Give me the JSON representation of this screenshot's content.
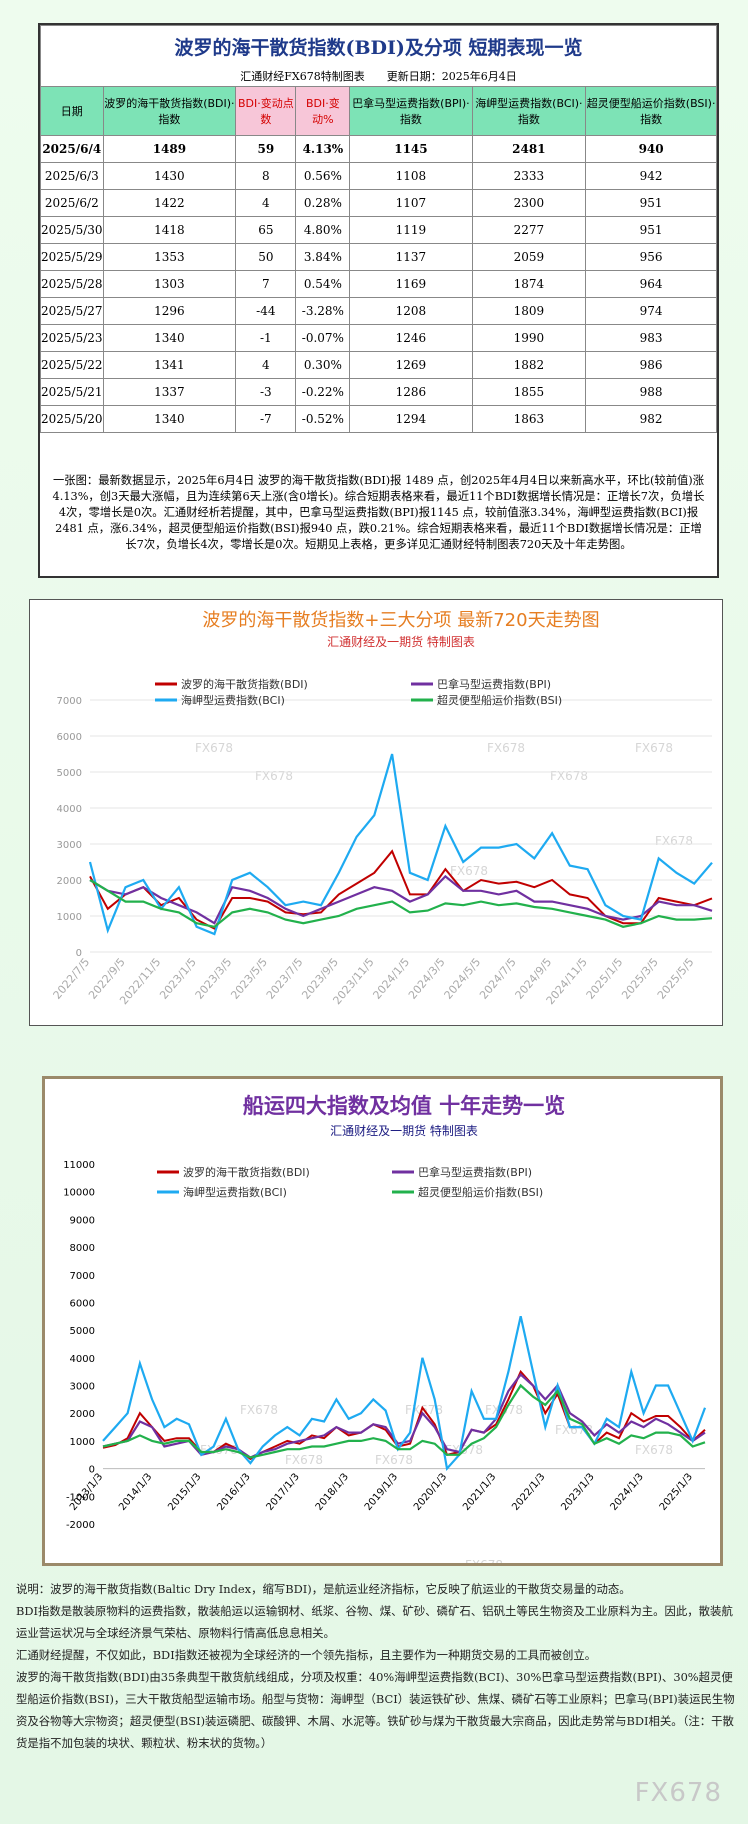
{
  "header": {
    "title": "波罗的海干散货指数(BDI)及分项 短期表现一览",
    "subtitle": "汇通财经FX678特制图表　　更新日期：2025年6月4日"
  },
  "table": {
    "columns": [
      "日期",
      "波罗的海干散货指数(BDI)·指数",
      "BDI·变动点数",
      "BDI·变动%",
      "巴拿马型运费指数(BPI)·指数",
      "海岬型运费指数(BCI)·指数",
      "超灵便型船运价指数(BSI)·指数"
    ],
    "rows": [
      [
        "2025/6/4",
        "1489",
        "59",
        "4.13%",
        "1145",
        "2481",
        "940"
      ],
      [
        "2025/6/3",
        "1430",
        "8",
        "0.56%",
        "1108",
        "2333",
        "942"
      ],
      [
        "2025/6/2",
        "1422",
        "4",
        "0.28%",
        "1107",
        "2300",
        "951"
      ],
      [
        "2025/5/30",
        "1418",
        "65",
        "4.80%",
        "1119",
        "2277",
        "951"
      ],
      [
        "2025/5/29",
        "1353",
        "50",
        "3.84%",
        "1137",
        "2059",
        "956"
      ],
      [
        "2025/5/28",
        "1303",
        "7",
        "0.54%",
        "1169",
        "1874",
        "964"
      ],
      [
        "2025/5/27",
        "1296",
        "-44",
        "-3.28%",
        "1208",
        "1809",
        "974"
      ],
      [
        "2025/5/23",
        "1340",
        "-1",
        "-0.07%",
        "1246",
        "1990",
        "983"
      ],
      [
        "2025/5/22",
        "1341",
        "4",
        "0.30%",
        "1269",
        "1882",
        "986"
      ],
      [
        "2025/5/21",
        "1337",
        "-3",
        "-0.22%",
        "1286",
        "1855",
        "988"
      ],
      [
        "2025/5/20",
        "1340",
        "-7",
        "-0.52%",
        "1294",
        "1863",
        "982"
      ]
    ]
  },
  "summary": "一张图：最新数据显示，2025年6月4日 波罗的海干散货指数(BDI)报 1489 点，创2025年4月4日以来新高水平，环比(较前值)涨4.13%，创3天最大涨幅，且为连续第6天上涨(含0增长)。综合短期表格来看，最近11个BDI数据增长情况是：正增长7次，负增长4次，零增长是0次。汇通财经析若提醒，其中，巴拿马型运费指数(BPI)报1145 点，较前值涨3.34%，海岬型运费指数(BCI)报2481 点，涨6.34%，超灵便型船运价指数(BSI)报940 点，跌0.21%。综合短期表格来看，最近11个BDI数据增长情况是：正增长7次，负增长4次，零增长是0次。短期见上表格，更多详见汇通财经特制图表720天及十年走势图。",
  "watermark": "FX678",
  "chart_data": [
    {
      "type": "line",
      "title": "波罗的海干散货指数+三大分项  最新720天走势图",
      "subtitle": "汇通财经及一期货  特制图表",
      "grid": true,
      "categories": [
        "2022/7/5",
        null,
        "2022/9/5",
        null,
        "2022/11/5",
        null,
        "2023/1/5",
        null,
        "2023/3/5",
        null,
        "2023/5/5",
        null,
        "2023/7/5",
        null,
        "2023/9/5",
        null,
        "2023/11/5",
        null,
        "2024/1/5",
        null,
        "2024/3/5",
        null,
        "2024/5/5",
        null,
        "2024/7/5",
        null,
        "2024/9/5",
        null,
        "2024/11/5",
        null,
        "2025/1/5",
        null,
        "2025/3/5",
        null,
        "2025/5/5",
        null
      ],
      "ylim": [
        0,
        7000
      ],
      "yticks": [
        0,
        1000,
        2000,
        3000,
        4000,
        5000,
        6000,
        7000
      ],
      "series": [
        {
          "name": "波罗的海干散货指数(BDI)",
          "color": "#c00000",
          "values": [
            2100,
            1200,
            1600,
            1800,
            1300,
            1500,
            900,
            650,
            1500,
            1500,
            1400,
            1100,
            1050,
            1100,
            1600,
            1900,
            2200,
            2800,
            1600,
            1600,
            2300,
            1700,
            2000,
            1900,
            1950,
            1800,
            2000,
            1600,
            1500,
            1000,
            800,
            800,
            1500,
            1400,
            1300,
            1489
          ]
        },
        {
          "name": "巴拿马型运费指数(BPI)",
          "color": "#7030a0",
          "values": [
            2000,
            1700,
            1600,
            1800,
            1500,
            1300,
            1100,
            800,
            1800,
            1700,
            1500,
            1200,
            1000,
            1200,
            1400,
            1600,
            1800,
            1700,
            1400,
            1600,
            2100,
            1700,
            1700,
            1600,
            1700,
            1400,
            1400,
            1300,
            1200,
            1000,
            900,
            1000,
            1400,
            1300,
            1300,
            1145
          ]
        },
        {
          "name": "海岬型运费指数(BCI)",
          "color": "#1eaaf1",
          "values": [
            2500,
            600,
            1800,
            2000,
            1200,
            1800,
            700,
            500,
            2000,
            2200,
            1800,
            1300,
            1400,
            1300,
            2200,
            3200,
            3800,
            5500,
            2200,
            2000,
            3500,
            2500,
            2900,
            2900,
            3000,
            2600,
            3300,
            2400,
            2300,
            1300,
            1000,
            900,
            2600,
            2200,
            1900,
            2481
          ]
        },
        {
          "name": "超灵便型船运价指数(BSI)",
          "color": "#22b14c",
          "values": [
            2000,
            1700,
            1400,
            1400,
            1200,
            1100,
            800,
            700,
            1100,
            1200,
            1100,
            900,
            800,
            900,
            1000,
            1200,
            1300,
            1400,
            1100,
            1150,
            1350,
            1300,
            1400,
            1300,
            1350,
            1250,
            1200,
            1100,
            1000,
            900,
            700,
            800,
            1000,
            900,
            900,
            940
          ]
        }
      ]
    },
    {
      "type": "line",
      "title": "船运四大指数及均值 十年走势一览",
      "subtitle": "汇通财经及一期货 特制图表",
      "grid": false,
      "categories": [
        "2013/1/3",
        null,
        null,
        null,
        "2014/1/3",
        null,
        null,
        null,
        "2015/1/3",
        null,
        null,
        null,
        "2016/1/3",
        null,
        null,
        null,
        "2017/1/3",
        null,
        null,
        null,
        "2018/1/3",
        null,
        null,
        null,
        "2019/1/3",
        null,
        null,
        null,
        "2020/1/3",
        null,
        null,
        null,
        "2021/1/3",
        null,
        null,
        null,
        "2022/1/3",
        null,
        null,
        null,
        "2023/1/3",
        null,
        null,
        null,
        "2024/1/3",
        null,
        null,
        null,
        "2025/1/3",
        null
      ],
      "ylim": [
        -2000,
        11000
      ],
      "yticks": [
        -2000,
        -1000,
        0,
        1000,
        2000,
        3000,
        4000,
        5000,
        6000,
        7000,
        8000,
        9000,
        10000,
        11000
      ],
      "series": [
        {
          "name": "波罗的海干散货指数(BDI)",
          "color": "#c00000",
          "values": [
            750,
            850,
            1100,
            2000,
            1500,
            1000,
            1100,
            1100,
            600,
            600,
            900,
            700,
            350,
            600,
            800,
            1000,
            900,
            1200,
            1100,
            1500,
            1200,
            1300,
            1600,
            1400,
            800,
            900,
            2200,
            1600,
            500,
            600,
            1400,
            1300,
            1600,
            2500,
            3500,
            3000,
            2000,
            2700,
            1500,
            1500,
            900,
            1300,
            1100,
            2000,
            1700,
            1900,
            1900,
            1500,
            1000,
            1400
          ]
        },
        {
          "name": "巴拿马型运费指数(BPI)",
          "color": "#7030a0",
          "values": [
            800,
            900,
            1000,
            1700,
            1500,
            800,
            900,
            1000,
            500,
            600,
            800,
            700,
            400,
            600,
            700,
            900,
            1000,
            1100,
            1200,
            1500,
            1300,
            1300,
            1600,
            1500,
            900,
            1000,
            2000,
            1500,
            700,
            600,
            1400,
            1300,
            1800,
            2800,
            3400,
            3000,
            2500,
            3000,
            2000,
            1700,
            1200,
            1600,
            1300,
            1700,
            1500,
            1800,
            1600,
            1300,
            1000,
            1300
          ]
        },
        {
          "name": "海岬型运费指数(BCI)",
          "color": "#1eaaf1",
          "values": [
            1000,
            1500,
            2000,
            3800,
            2500,
            1500,
            1800,
            1600,
            500,
            800,
            1800,
            700,
            200,
            800,
            1200,
            1500,
            1200,
            1800,
            1700,
            2500,
            1800,
            2000,
            2500,
            2100,
            700,
            1300,
            4000,
            2500,
            0,
            500,
            2800,
            1800,
            1800,
            3500,
            5500,
            3500,
            1500,
            3000,
            1500,
            1500,
            900,
            1800,
            1500,
            3500,
            2000,
            3000,
            3000,
            2000,
            1000,
            2200
          ]
        },
        {
          "name": "超灵便型船运价指数(BSI)",
          "color": "#22b14c",
          "values": [
            800,
            900,
            1000,
            1200,
            1000,
            900,
            1000,
            1000,
            600,
            600,
            700,
            600,
            400,
            500,
            600,
            700,
            700,
            800,
            800,
            900,
            1000,
            1000,
            1100,
            1000,
            700,
            700,
            1000,
            900,
            500,
            500,
            900,
            1100,
            1500,
            2300,
            3000,
            2600,
            2300,
            2800,
            1800,
            1600,
            900,
            1100,
            900,
            1200,
            1100,
            1300,
            1300,
            1200,
            800,
            950
          ]
        }
      ]
    }
  ],
  "notes": [
    "说明：波罗的海干散货指数(Baltic Dry Index，缩写BDI)，是航运业经济指标，它反映了航运业的干散货交易量的动态。",
    "BDI指数是散装原物料的运费指数，散装船运以运输钢材、纸浆、谷物、煤、矿砂、磷矿石、铝矾土等民生物资及工业原料为主。因此，散装航运业营运状况与全球经济景气荣枯、原物料行情高低息息相关。",
    "汇通财经提醒，不仅如此，BDI指数还被视为全球经济的一个领先指标，且主要作为一种期货交易的工具而被创立。",
    "波罗的海干散货指数(BDI)由35条典型干散货航线组成，分项及权重：40%海岬型运费指数(BCI)、30%巴拿马型运费指数(BPI)、30%超灵便型船运价指数(BSI)，三大干散货船型运输市场。船型与货物：海岬型（BCI）装运铁矿砂、焦煤、磷矿石等工业原料；巴拿马(BPI)装运民生物资及谷物等大宗物资；超灵便型(BSI)装运磷肥、碳酸钾、木屑、水泥等。铁矿砂与煤为干散货最大宗商品，因此走势常与BDI相关。（注：干散货是指不加包装的块状、颗粒状、粉末状的货物。）"
  ]
}
